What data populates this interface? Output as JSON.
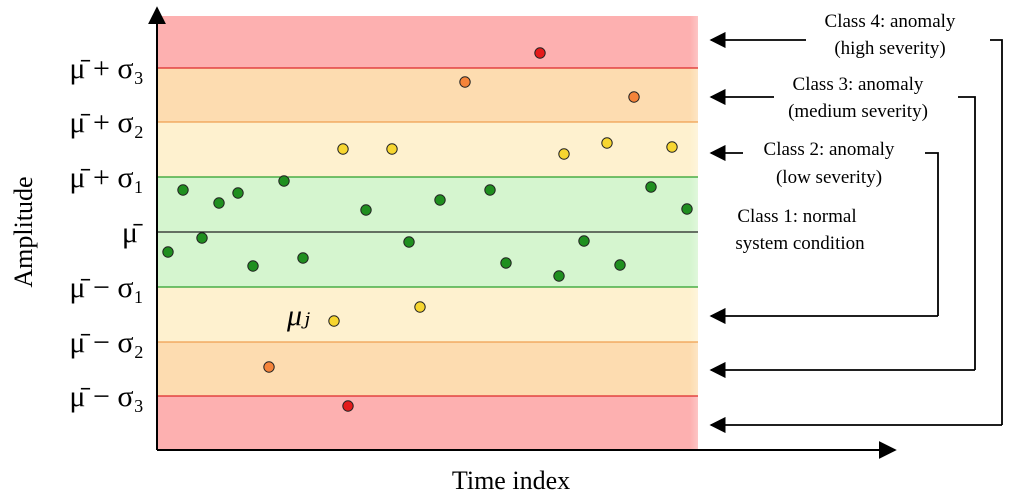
{
  "axes": {
    "x_label": "Time index",
    "y_label": "Amplitude"
  },
  "thresholds": [
    {
      "key": "p3",
      "text": "μ̄ + σ₃",
      "line_color": "#dd2a2a"
    },
    {
      "key": "p2",
      "text": "μ̄ + σ₂",
      "line_color": "#f0a050"
    },
    {
      "key": "p1",
      "text": "μ̄ + σ₁",
      "line_color": "#2aa02a"
    },
    {
      "key": "m0",
      "text": "μ̄",
      "line_color": "#222222"
    },
    {
      "key": "n1",
      "text": "μ̄ − σ₁",
      "line_color": "#2aa02a"
    },
    {
      "key": "n2",
      "text": "μ̄ − σ₂",
      "line_color": "#f0a050"
    },
    {
      "key": "n3",
      "text": "μ̄ − σ₃",
      "line_color": "#dd2a2a"
    }
  ],
  "point_label": "μⱼ",
  "classes": [
    {
      "id": 4,
      "line1": "Class 4: anomaly",
      "line2": "(high severity)",
      "color": "#e41a1a"
    },
    {
      "id": 3,
      "line1": "Class 3: anomaly",
      "line2": "(medium severity)",
      "color": "#f5843a"
    },
    {
      "id": 2,
      "line1": "Class 2: anomaly",
      "line2": "(low severity)",
      "color": "#f7d630"
    },
    {
      "id": 1,
      "line1": "Class 1: normal",
      "line2": "system condition",
      "color": "#1f8f1f"
    }
  ],
  "band_colors": {
    "class4": "#fdb0b0",
    "class3": "#fddcb0",
    "class2": "#fef1cf",
    "class1": "#d5f5cf"
  }
}
